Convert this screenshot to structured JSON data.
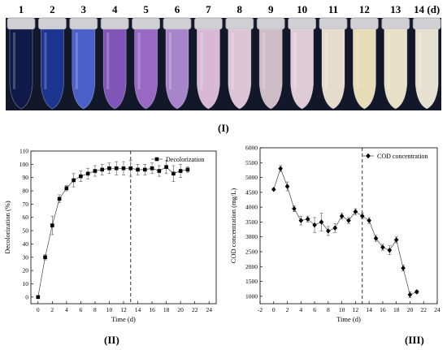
{
  "photo": {
    "day_labels": [
      "1",
      "2",
      "3",
      "4",
      "5",
      "6",
      "7",
      "8",
      "9",
      "10",
      "11",
      "12",
      "13",
      "14 (d)"
    ],
    "tube_colors": [
      "#101a4a",
      "#1c3590",
      "#4a5fc8",
      "#8055b8",
      "#9868c4",
      "#a884ca",
      "#d8b8d6",
      "#dcc4d4",
      "#cdbcc6",
      "#e0ccd6",
      "#e6dccc",
      "#e6dcb8",
      "#e8e0c6",
      "#e6e0d0"
    ],
    "background_color": "#12182a",
    "panel_label": "(I)"
  },
  "chart_data": [
    {
      "type": "scatter",
      "panel_label": "(II)",
      "title": "",
      "xlabel": "Time (d)",
      "ylabel": "Decolorization (%)",
      "xlim": [
        -1,
        25
      ],
      "ylim": [
        -5,
        110
      ],
      "xticks": [
        0,
        2,
        4,
        6,
        8,
        10,
        12,
        14,
        16,
        18,
        20,
        22,
        24
      ],
      "yticks": [
        0,
        10,
        20,
        30,
        40,
        50,
        60,
        70,
        80,
        90,
        100,
        110
      ],
      "legend": {
        "label": "Decolorization",
        "placement": "top-right"
      },
      "grid": false,
      "marker": "square",
      "vline_x": 13,
      "series": [
        {
          "name": "Decolorization",
          "x": [
            0,
            1,
            2,
            3,
            4,
            5,
            6,
            7,
            8,
            9,
            10,
            11,
            12,
            13,
            14,
            15,
            16,
            17,
            18,
            19,
            20,
            21
          ],
          "y": [
            0,
            30,
            54,
            74,
            82,
            88,
            91,
            93,
            95,
            96,
            97,
            97,
            97,
            97,
            96,
            96,
            97,
            95,
            98,
            93,
            95,
            96
          ],
          "err": [
            0,
            2,
            7,
            3,
            2,
            5,
            4,
            4,
            4,
            4,
            4,
            5,
            5,
            6,
            4,
            4,
            4,
            4,
            5,
            6,
            5,
            2
          ]
        }
      ]
    },
    {
      "type": "scatter",
      "panel_label": "(III)",
      "title": "",
      "xlabel": "Time (d)",
      "ylabel": "COD concentration (mg/L)",
      "xlim": [
        -2,
        24
      ],
      "ylim": [
        750,
        6000
      ],
      "xticks": [
        -2,
        0,
        2,
        4,
        6,
        8,
        10,
        12,
        14,
        16,
        18,
        20,
        22,
        24
      ],
      "yticks": [
        1000,
        1500,
        2000,
        2500,
        3000,
        3500,
        4000,
        4500,
        5000,
        5500,
        6000
      ],
      "legend": {
        "label": "COD concentration",
        "placement": "top-right"
      },
      "grid": false,
      "marker": "diamond",
      "vline_x": 13,
      "series": [
        {
          "name": "COD concentration",
          "x": [
            0,
            1,
            2,
            3,
            4,
            5,
            6,
            7,
            8,
            9,
            10,
            11,
            12,
            13,
            14,
            15,
            16,
            17,
            18,
            19,
            20,
            21
          ],
          "y": [
            4600,
            5300,
            4700,
            3950,
            3550,
            3600,
            3400,
            3500,
            3200,
            3300,
            3700,
            3550,
            3850,
            3700,
            3550,
            2950,
            2650,
            2550,
            2900,
            1950,
            1050,
            1150
          ],
          "err": [
            0,
            100,
            150,
            100,
            150,
            100,
            250,
            300,
            150,
            150,
            100,
            100,
            100,
            100,
            100,
            100,
            100,
            150,
            100,
            100,
            100,
            50
          ]
        }
      ]
    }
  ]
}
